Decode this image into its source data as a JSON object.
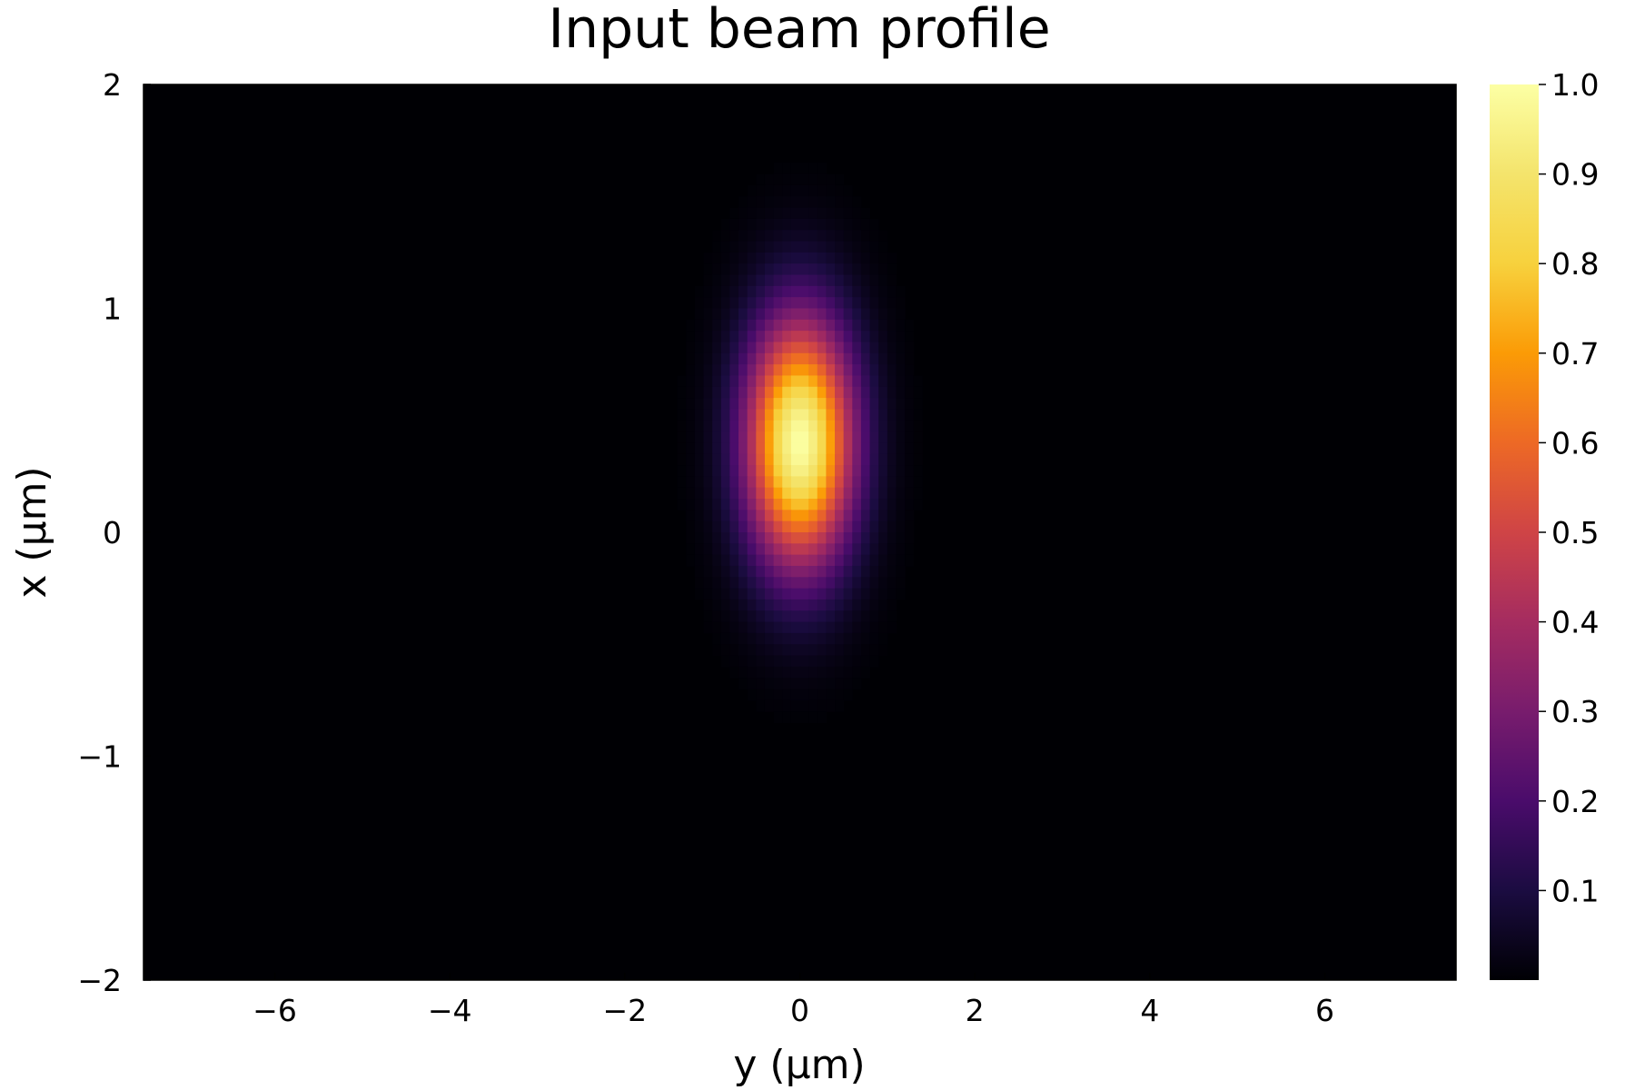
{
  "chart_data": {
    "type": "heatmap",
    "title": "Input beam profile",
    "xlabel": "y (μm)",
    "ylabel": "x (μm)",
    "xlim": [
      -7.5,
      7.5
    ],
    "ylim": [
      -2,
      2
    ],
    "x_ticks": [
      -6,
      -4,
      -2,
      0,
      2,
      4,
      6
    ],
    "x_tick_labels": [
      "−6",
      "−4",
      "−2",
      "0",
      "2",
      "4",
      "6"
    ],
    "y_ticks": [
      -2,
      -1,
      0,
      1,
      2
    ],
    "y_tick_labels": [
      "−2",
      "−1",
      "0",
      "1",
      "2"
    ],
    "colorscale": "inferno",
    "colorbar": {
      "range": [
        0,
        1.0
      ],
      "ticks": [
        0.1,
        0.2,
        0.3,
        0.4,
        0.5,
        0.6,
        0.7,
        0.8,
        0.9,
        1.0
      ],
      "tick_labels": [
        "0.1",
        "0.2",
        "0.3",
        "0.4",
        "0.5",
        "0.6",
        "0.7",
        "0.8",
        "0.9",
        "1.0"
      ]
    },
    "field": {
      "model": "gaussian",
      "peak_value": 1.0,
      "center_y": 0.0,
      "center_x": 0.4,
      "sigma_y": 0.42,
      "sigma_x": 0.38
    },
    "grid": false
  }
}
